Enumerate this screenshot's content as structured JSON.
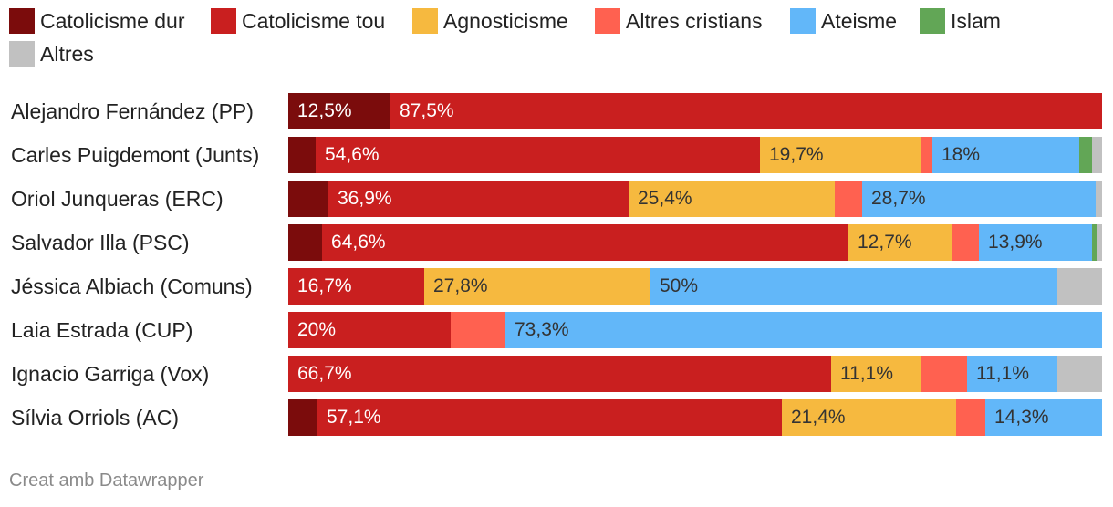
{
  "chart_data": {
    "type": "bar",
    "orientation": "horizontal",
    "stacked": true,
    "title": "",
    "xlabel": "",
    "ylabel": "",
    "xlim": [
      0,
      100
    ],
    "legend_position": "top",
    "series": [
      {
        "name": "Catolicisme dur",
        "color": "#7b0c0c"
      },
      {
        "name": "Catolicisme tou",
        "color": "#c91f1f"
      },
      {
        "name": "Agnosticisme",
        "color": "#f6b93f"
      },
      {
        "name": "Altres cristians",
        "color": "#ff6150"
      },
      {
        "name": "Ateisme",
        "color": "#62b7f9"
      },
      {
        "name": "Islam",
        "color": "#62a656"
      },
      {
        "name": "Altres",
        "color": "#c1c1c1"
      }
    ],
    "rows": [
      {
        "label": "Alejandro Fernández (PP)",
        "values": [
          12.5,
          87.5,
          0,
          0,
          0,
          0,
          0
        ],
        "labels": [
          "12,5%",
          "87,5%",
          "",
          "",
          "",
          "",
          ""
        ]
      },
      {
        "label": "Carles Puigdemont (Junts)",
        "values": [
          3.4,
          54.6,
          19.7,
          1.5,
          18.0,
          1.6,
          1.2
        ],
        "labels": [
          "",
          "54,6%",
          "19,7%",
          "",
          "18%",
          "",
          ""
        ]
      },
      {
        "label": "Oriol Junqueras (ERC)",
        "values": [
          4.9,
          36.9,
          25.4,
          3.3,
          28.7,
          0,
          0.8
        ],
        "labels": [
          "",
          "36,9%",
          "25,4%",
          "",
          "28,7%",
          "",
          ""
        ]
      },
      {
        "label": "Salvador Illa (PSC)",
        "values": [
          4.2,
          64.6,
          12.7,
          3.4,
          13.9,
          0.6,
          0.6
        ],
        "labels": [
          "",
          "64,6%",
          "12,7%",
          "",
          "13,9%",
          "",
          ""
        ]
      },
      {
        "label": "Jéssica Albiach (Comuns)",
        "values": [
          0,
          16.7,
          27.8,
          0,
          50.0,
          0,
          5.5
        ],
        "labels": [
          "",
          "16,7%",
          "27,8%",
          "",
          "50%",
          "",
          ""
        ]
      },
      {
        "label": "Laia Estrada (CUP)",
        "values": [
          0,
          20.0,
          0,
          6.7,
          73.3,
          0,
          0
        ],
        "labels": [
          "",
          "20%",
          "",
          "",
          "73,3%",
          "",
          ""
        ]
      },
      {
        "label": "Ignacio Garriga (Vox)",
        "values": [
          0,
          66.7,
          11.1,
          5.6,
          11.1,
          0,
          5.5
        ],
        "labels": [
          "",
          "66,7%",
          "11,1%",
          "",
          "11,1%",
          "",
          ""
        ]
      },
      {
        "label": "Sílvia Orriols (AC)",
        "values": [
          3.6,
          57.1,
          21.4,
          3.6,
          14.3,
          0,
          0
        ],
        "labels": [
          "",
          "57,1%",
          "21,4%",
          "",
          "14,3%",
          "",
          ""
        ]
      }
    ]
  },
  "footer": "Creat amb Datawrapper"
}
